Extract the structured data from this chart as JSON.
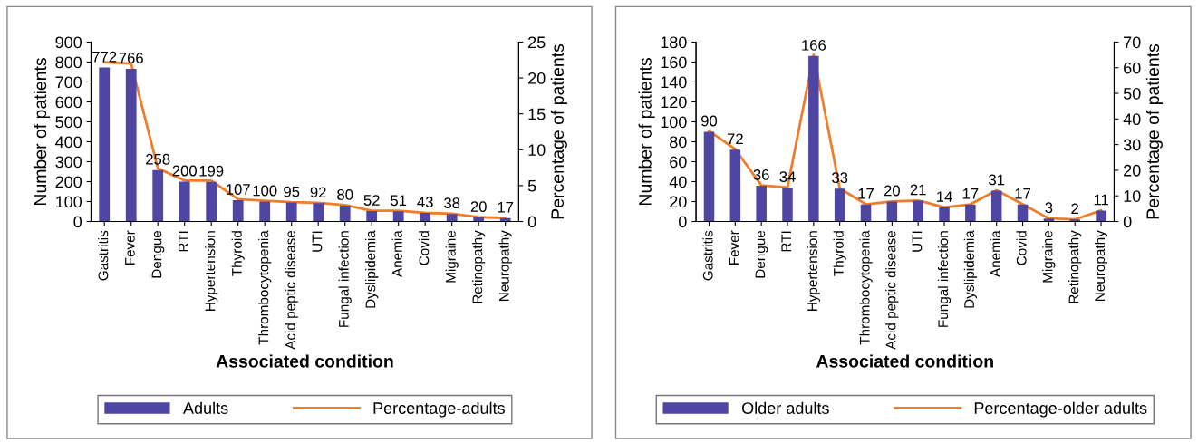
{
  "chart_data": [
    {
      "type": "bar",
      "xlabel": "Associated condition",
      "ylabel": "Number of patients",
      "y2label": "Percentage of patients",
      "legend": "bottom",
      "categories": [
        "Gastritis",
        "Fever",
        "Dengue",
        "RTI",
        "Hypertension",
        "Thyroid",
        "Thrombocytopenia",
        "Acid peptic disease",
        "UTI",
        "Fungal infection",
        "Dyslipidemia",
        "Anemia",
        "Covid",
        "Migraine",
        "Retinopathy",
        "Neuropathy"
      ],
      "ylim": [
        0,
        900
      ],
      "yticks": [
        0,
        100,
        200,
        300,
        400,
        500,
        600,
        700,
        800,
        900
      ],
      "y2lim": [
        0,
        25
      ],
      "y2ticks": [
        0,
        5,
        10,
        15,
        20,
        25
      ],
      "series": [
        {
          "name": "Adults",
          "type": "bar",
          "color": "#4f45a3",
          "values": [
            772,
            766,
            258,
            200,
            199,
            107,
            100,
            95,
            92,
            80,
            52,
            51,
            43,
            38,
            20,
            17
          ],
          "value_labels": [
            "772",
            "766",
            "258",
            "200",
            "199",
            "107",
            "100",
            "95",
            "92",
            "80",
            "52",
            "51",
            "43",
            "38",
            "20",
            "17"
          ]
        },
        {
          "name": "Percentage-adults",
          "type": "line",
          "axis": "y2",
          "color": "#f07d2a",
          "values": [
            22.2,
            22.0,
            7.4,
            5.7,
            5.7,
            3.1,
            2.9,
            2.7,
            2.6,
            2.3,
            1.5,
            1.5,
            1.2,
            1.1,
            0.6,
            0.5
          ]
        }
      ]
    },
    {
      "type": "bar",
      "xlabel": "Associated condition",
      "ylabel": "Number of patients",
      "y2label": "Percentage of patients",
      "legend": "bottom",
      "categories": [
        "Gastritis",
        "Fever",
        "Dengue",
        "RTI",
        "Hypertension",
        "Thyroid",
        "Thrombocytopenia",
        "Acid peptic disease",
        "UTI",
        "Fungal infection",
        "Dyslipidemia",
        "Anemia",
        "Covid",
        "Migraine",
        "Retinopathy",
        "Neuropathy"
      ],
      "ylim": [
        0,
        180
      ],
      "yticks": [
        0,
        20,
        40,
        60,
        80,
        100,
        120,
        140,
        160,
        180
      ],
      "y2lim": [
        0,
        70
      ],
      "y2ticks": [
        0,
        10,
        20,
        30,
        40,
        50,
        60,
        70
      ],
      "series": [
        {
          "name": "Older adults",
          "type": "bar",
          "color": "#4f45a3",
          "values": [
            90,
            72,
            36,
            34,
            166,
            33,
            17,
            20,
            21,
            14,
            17,
            31,
            17,
            3,
            2,
            11
          ],
          "value_labels": [
            "90",
            "72",
            "36",
            "34",
            "166",
            "33",
            "17",
            "20",
            "21",
            "14",
            "17",
            "31",
            "17",
            "3",
            "2",
            "11"
          ]
        },
        {
          "name": "Percentage-older adults",
          "type": "line",
          "axis": "y2",
          "color": "#f07d2a",
          "values": [
            35.3,
            28.2,
            14.1,
            13.3,
            65.1,
            12.9,
            6.7,
            7.8,
            8.2,
            5.5,
            6.7,
            12.2,
            6.7,
            1.2,
            0.8,
            4.3
          ]
        }
      ]
    }
  ]
}
